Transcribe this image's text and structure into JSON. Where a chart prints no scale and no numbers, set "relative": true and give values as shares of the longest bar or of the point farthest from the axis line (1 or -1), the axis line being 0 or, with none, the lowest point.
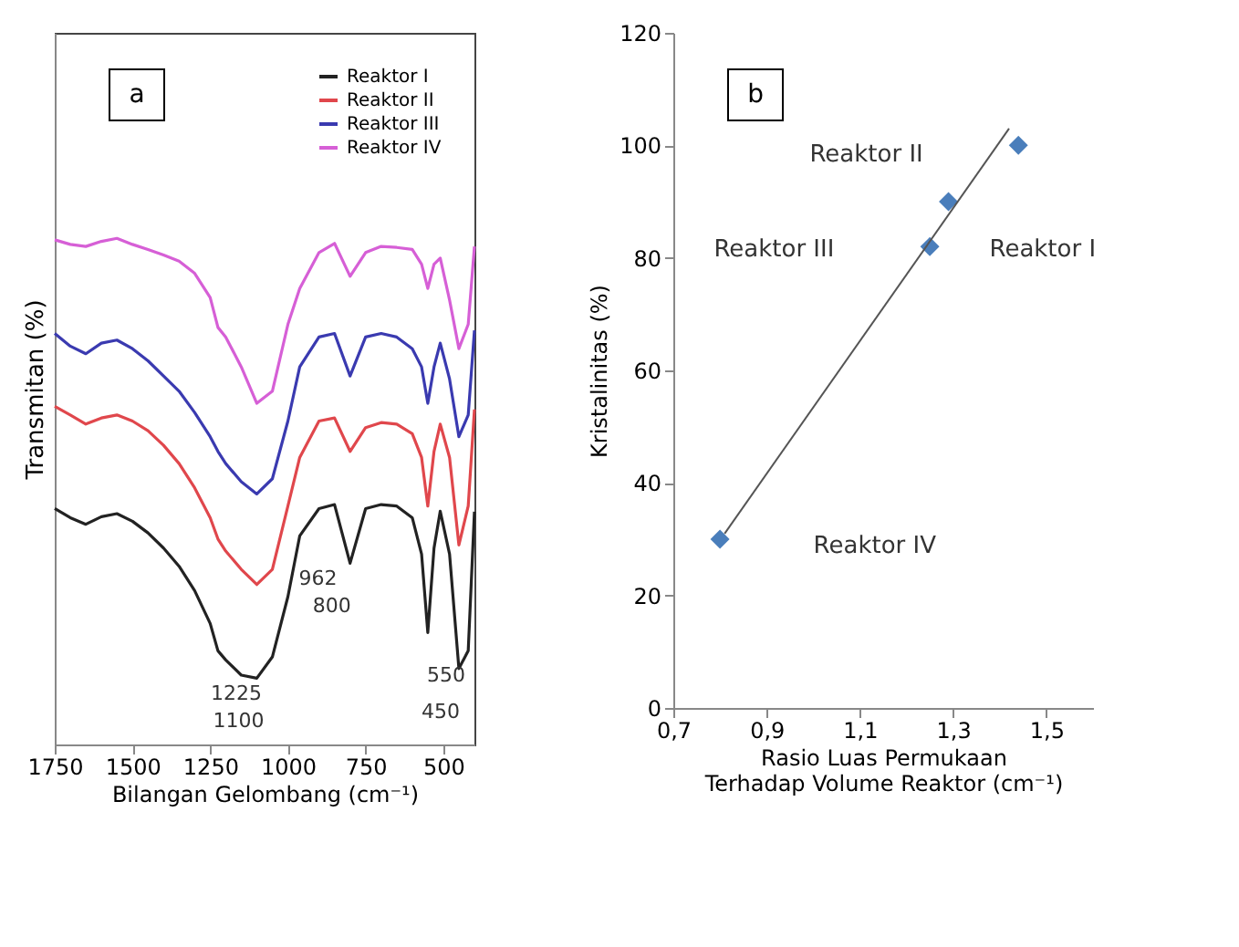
{
  "chart_data": [
    {
      "type": "line",
      "relative": true,
      "xlabel": "Bilangan Gelombang (cm⁻¹)",
      "ylabel": "Transmitan (%)",
      "xlim": [
        1750,
        400
      ],
      "xticks": [
        1750,
        1500,
        1250,
        1000,
        750,
        500
      ],
      "legend": "top right",
      "grid": false,
      "x": [
        1750,
        1700,
        1650,
        1600,
        1550,
        1500,
        1450,
        1400,
        1350,
        1300,
        1250,
        1225,
        1200,
        1150,
        1100,
        1050,
        1000,
        962,
        900,
        850,
        800,
        750,
        700,
        650,
        600,
        570,
        550,
        530,
        510,
        480,
        450,
        420,
        400
      ],
      "series": [
        {
          "name": "Reaktor I",
          "color": "#222222",
          "values": [
            0.466,
            0.448,
            0.435,
            0.45,
            0.456,
            0.441,
            0.418,
            0.388,
            0.352,
            0.304,
            0.239,
            0.185,
            0.167,
            0.137,
            0.131,
            0.173,
            0.292,
            0.412,
            0.466,
            0.474,
            0.358,
            0.466,
            0.474,
            0.471,
            0.448,
            0.376,
            0.221,
            0.388,
            0.461,
            0.376,
            0.15,
            0.185,
            0.46
          ]
        },
        {
          "name": "Reaktor II",
          "color": "#e0474c",
          "values": [
            0.668,
            0.651,
            0.633,
            0.645,
            0.651,
            0.639,
            0.62,
            0.591,
            0.555,
            0.507,
            0.448,
            0.406,
            0.382,
            0.346,
            0.316,
            0.346,
            0.471,
            0.567,
            0.639,
            0.645,
            0.579,
            0.626,
            0.636,
            0.633,
            0.614,
            0.567,
            0.471,
            0.579,
            0.633,
            0.567,
            0.394,
            0.471,
            0.662
          ]
        },
        {
          "name": "Reaktor III",
          "color": "#3a3ab0",
          "values": [
            0.812,
            0.787,
            0.772,
            0.793,
            0.799,
            0.782,
            0.758,
            0.728,
            0.698,
            0.656,
            0.608,
            0.579,
            0.555,
            0.519,
            0.495,
            0.525,
            0.639,
            0.746,
            0.805,
            0.812,
            0.728,
            0.805,
            0.812,
            0.805,
            0.782,
            0.746,
            0.674,
            0.746,
            0.793,
            0.722,
            0.608,
            0.651,
            0.818
          ]
        },
        {
          "name": "Reaktor IV",
          "color": "#d65fd6",
          "values": [
            0.997,
            0.988,
            0.984,
            0.994,
            1,
            0.988,
            0.978,
            0.967,
            0.955,
            0.931,
            0.883,
            0.824,
            0.805,
            0.746,
            0.674,
            0.698,
            0.83,
            0.901,
            0.972,
            0.99,
            0.925,
            0.972,
            0.984,
            0.982,
            0.978,
            0.949,
            0.901,
            0.949,
            0.961,
            0.878,
            0.782,
            0.83,
            0.984
          ]
        }
      ],
      "annotations": [
        "a",
        {
          "text": "1225",
          "x": 1225,
          "y": 0.185
        },
        {
          "text": "1100",
          "x": 1100,
          "y": 0.131
        },
        {
          "text": "962",
          "x": 962,
          "y": 0.412
        },
        {
          "text": "800",
          "x": 800,
          "y": 0.358
        },
        {
          "text": "550",
          "x": 550,
          "y": 0.221
        },
        {
          "text": "450",
          "x": 450,
          "y": 0.15
        }
      ]
    },
    {
      "type": "scatter",
      "xlabel": "Rasio Luas Permukaan Terhadap Volume Reaktor (cm⁻¹)",
      "ylabel": "Kristalinitas (%)",
      "xlim": [
        0.7,
        1.6
      ],
      "xticks": [
        {
          "value": 0.7,
          "label": "0,7"
        },
        {
          "value": 0.9,
          "label": "0,9"
        },
        {
          "value": 1.1,
          "label": "1,1"
        },
        {
          "value": 1.3,
          "label": "1,3"
        },
        {
          "value": 1.5,
          "label": "1,5"
        }
      ],
      "ylim": [
        0,
        120
      ],
      "yticks": [
        0,
        20,
        40,
        60,
        80,
        100,
        120
      ],
      "grid": false,
      "series": [
        {
          "type": "scatter",
          "marker": "diamond",
          "color": "#4a7ebb",
          "x": [
            0.8,
            1.25,
            1.29,
            1.44
          ],
          "values": [
            30,
            82,
            90,
            100
          ]
        },
        {
          "type": "line",
          "color": "#555555",
          "x": [
            0.81,
            1.42
          ],
          "values": [
            31,
            103
          ]
        }
      ],
      "annotations": [
        "b",
        "Reaktor I",
        "Reaktor II",
        "Reaktor III",
        "Reaktor IV"
      ]
    }
  ]
}
